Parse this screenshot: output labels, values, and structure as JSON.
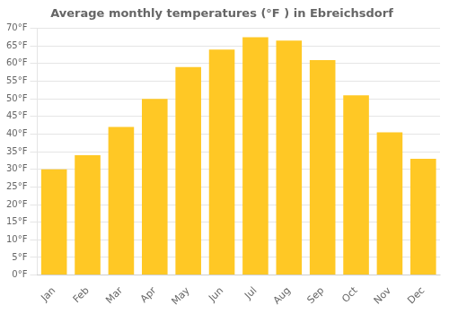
{
  "chart_data": {
    "type": "bar",
    "title": "Average monthly temperatures (°F ) in Ebreichsdorf",
    "categories": [
      "Jan",
      "Feb",
      "Mar",
      "Apr",
      "May",
      "Jun",
      "Jul",
      "Aug",
      "Sep",
      "Oct",
      "Nov",
      "Dec"
    ],
    "values": [
      30,
      34,
      42,
      50,
      59,
      64,
      67.5,
      66.5,
      61,
      51,
      40.5,
      33
    ],
    "color": "#FFC825",
    "ylim": [
      0,
      70
    ],
    "yticks": [
      {
        "value": 0,
        "label": "0°F"
      },
      {
        "value": 5,
        "label": "5°F"
      },
      {
        "value": 10,
        "label": "10°F"
      },
      {
        "value": 15,
        "label": "15°F"
      },
      {
        "value": 20,
        "label": "20°F"
      },
      {
        "value": 25,
        "label": "25°F"
      },
      {
        "value": 30,
        "label": "30°F"
      },
      {
        "value": 35,
        "label": "35°F"
      },
      {
        "value": 40,
        "label": "40°F"
      },
      {
        "value": 45,
        "label": "45°F"
      },
      {
        "value": 50,
        "label": "50°F"
      },
      {
        "value": 55,
        "label": "55°F"
      },
      {
        "value": 60,
        "label": "60°F"
      },
      {
        "value": 65,
        "label": "65°F"
      },
      {
        "value": 70,
        "label": "70°F"
      }
    ],
    "grid": true
  }
}
